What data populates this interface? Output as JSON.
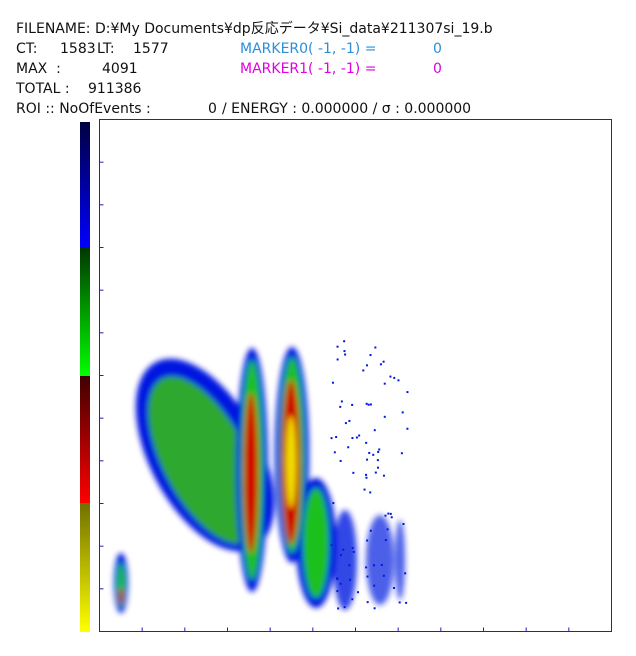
{
  "header": {
    "filename": "FILENAME: D:¥My Documents¥dp反応データ¥Si_data¥211307si_19.b",
    "ct_label": "CT:",
    "ct": "1583",
    "lt_label": "LT:",
    "lt": "1577",
    "max_label": "MAX  :",
    "max": "4091",
    "total_label": "TOTAL :",
    "total": "911386",
    "marker0_label": "MARKER0( -1, -1) =",
    "marker0_value": "0",
    "marker1_label": "MARKER1( -1, -1) =",
    "marker1_value": "0",
    "roi_label": "ROI :: NoOfEvents :",
    "roi_events": "0",
    "roi_rest": "/ ENERGY : 0.000000 / σ : 0.000000"
  }
}
